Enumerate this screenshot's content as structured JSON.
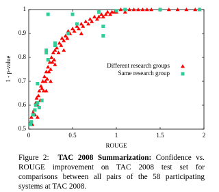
{
  "chart_data": {
    "type": "scatter",
    "xlabel": "ROUGE",
    "ylabel": "1 - p-value",
    "xlim": [
      0,
      2
    ],
    "ylim": [
      0.5,
      1
    ],
    "xticks": [
      0,
      0.5,
      1,
      1.5,
      2
    ],
    "yticks": [
      0.5,
      0.6,
      0.7,
      0.8,
      0.9,
      1
    ],
    "series": [
      {
        "name": "Different research groups",
        "color": "#ff0000",
        "marker": "triangle",
        "x": [
          0.02,
          0.03,
          0.04,
          0.05,
          0.06,
          0.07,
          0.08,
          0.09,
          0.1,
          0.11,
          0.12,
          0.13,
          0.14,
          0.15,
          0.16,
          0.17,
          0.18,
          0.19,
          0.2,
          0.21,
          0.22,
          0.23,
          0.24,
          0.25,
          0.26,
          0.27,
          0.28,
          0.29,
          0.3,
          0.32,
          0.34,
          0.35,
          0.37,
          0.38,
          0.4,
          0.42,
          0.44,
          0.45,
          0.47,
          0.5,
          0.52,
          0.55,
          0.57,
          0.6,
          0.62,
          0.65,
          0.68,
          0.7,
          0.72,
          0.75,
          0.78,
          0.8,
          0.83,
          0.85,
          0.88,
          0.9,
          0.93,
          0.95,
          0.98,
          1.0,
          1.05,
          1.1,
          1.15,
          1.2,
          1.25,
          1.3,
          1.35,
          1.4,
          1.5,
          1.6,
          1.7,
          1.8,
          1.9,
          1.95,
          0.25,
          0.3,
          0.4,
          0.6,
          0.1,
          0.2
        ],
        "values": [
          0.53,
          0.55,
          0.52,
          0.57,
          0.58,
          0.56,
          0.61,
          0.63,
          0.6,
          0.64,
          0.66,
          0.62,
          0.68,
          0.67,
          0.7,
          0.66,
          0.72,
          0.7,
          0.74,
          0.71,
          0.76,
          0.74,
          0.78,
          0.75,
          0.8,
          0.78,
          0.82,
          0.79,
          0.83,
          0.84,
          0.82,
          0.86,
          0.85,
          0.88,
          0.87,
          0.89,
          0.88,
          0.91,
          0.9,
          0.92,
          0.91,
          0.93,
          0.92,
          0.94,
          0.93,
          0.95,
          0.94,
          0.96,
          0.95,
          0.97,
          0.96,
          0.97,
          0.98,
          0.97,
          0.98,
          0.99,
          0.98,
          0.99,
          0.99,
          0.99,
          1.0,
          0.99,
          1.0,
          1.0,
          1.0,
          1.0,
          1.0,
          1.0,
          1.0,
          1.0,
          1.0,
          1.0,
          1.0,
          1.0,
          0.7,
          0.77,
          0.83,
          0.9,
          0.55,
          0.66
        ]
      },
      {
        "name": "Same research group",
        "color": "#33cc99",
        "marker": "square",
        "x": [
          0.02,
          0.03,
          0.05,
          0.07,
          0.08,
          0.1,
          0.1,
          0.12,
          0.15,
          0.2,
          0.2,
          0.22,
          0.22,
          0.3,
          0.3,
          0.45,
          0.5,
          0.55,
          0.8,
          0.85,
          0.85,
          1.0,
          1.1,
          1.5,
          1.95
        ],
        "values": [
          0.52,
          0.53,
          0.56,
          0.58,
          0.6,
          0.61,
          0.69,
          0.59,
          0.62,
          0.82,
          0.83,
          0.79,
          0.98,
          0.85,
          0.86,
          0.9,
          0.98,
          0.94,
          0.99,
          0.93,
          0.89,
          0.995,
          1.0,
          1.0,
          1.0
        ]
      }
    ],
    "legend": "right"
  },
  "caption": {
    "label": "Figure 2:",
    "title": "TAC 2008 Summarization:",
    "text": "Confidence vs. ROUGE improvement on TAC 2008 test set for comparisons between all pairs of the 58 participating systems at TAC 2008."
  }
}
